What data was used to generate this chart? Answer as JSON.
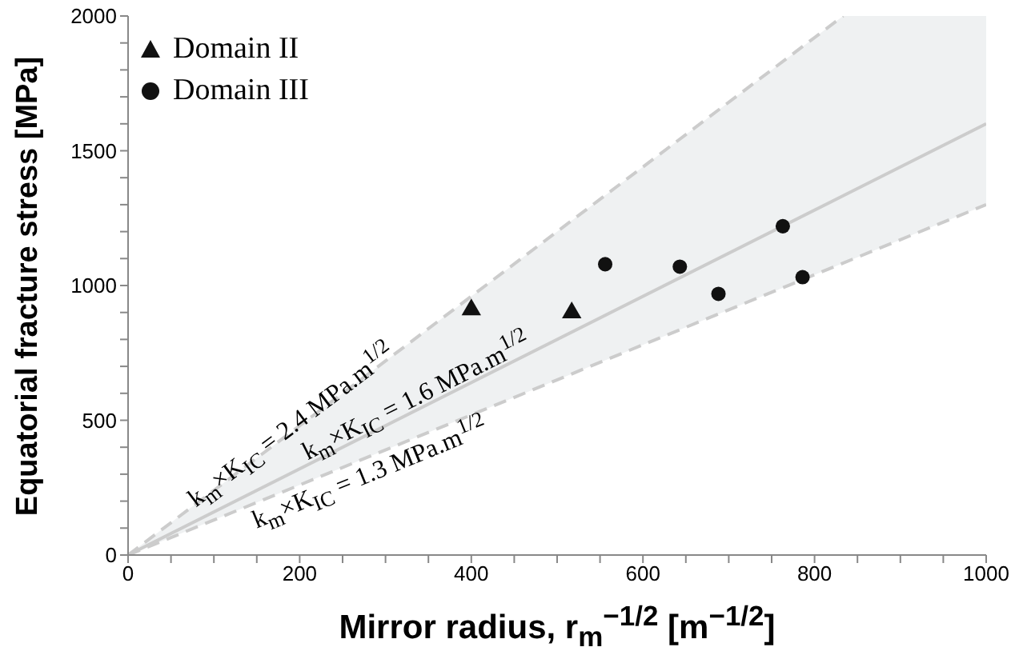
{
  "chart_data": {
    "type": "scatter",
    "xlabel": "Mirror radius, r$_{m}$$^{−1/2}$ [m$^{−1/2}$]",
    "ylabel": "Equatorial fracture stress [MPa]",
    "xlim": [
      0,
      1000
    ],
    "xticks": [
      0,
      {
        "value": 50,
        "label": null
      },
      {
        "value": 100,
        "label": null
      },
      {
        "value": 150,
        "label": null
      },
      200,
      {
        "value": 250,
        "label": null
      },
      {
        "value": 300,
        "label": null
      },
      {
        "value": 350,
        "label": null
      },
      400,
      {
        "value": 450,
        "label": null
      },
      {
        "value": 500,
        "label": null
      },
      {
        "value": 550,
        "label": null
      },
      600,
      {
        "value": 650,
        "label": null
      },
      {
        "value": 700,
        "label": null
      },
      {
        "value": 750,
        "label": null
      },
      800,
      {
        "value": 850,
        "label": null
      },
      {
        "value": 900,
        "label": null
      },
      {
        "value": 950,
        "label": null
      },
      1000
    ],
    "ylim": [
      0,
      2000
    ],
    "yticks": [
      0,
      {
        "value": 100,
        "label": null
      },
      {
        "value": 200,
        "label": null
      },
      {
        "value": 300,
        "label": null
      },
      {
        "value": 400,
        "label": null
      },
      500,
      {
        "value": 600,
        "label": null
      },
      {
        "value": 700,
        "label": null
      },
      {
        "value": 800,
        "label": null
      },
      {
        "value": 900,
        "label": null
      },
      1000,
      {
        "value": 1100,
        "label": null
      },
      {
        "value": 1200,
        "label": null
      },
      {
        "value": 1300,
        "label": null
      },
      {
        "value": 1400,
        "label": null
      },
      1500,
      {
        "value": 1600,
        "label": null
      },
      {
        "value": 1700,
        "label": null
      },
      {
        "value": 1800,
        "label": null
      },
      {
        "value": 1900,
        "label": null
      },
      2000
    ],
    "grid": false,
    "legend": "top left",
    "series": [
      {
        "name": "Domain II",
        "marker": "triangle",
        "color": "#111111",
        "x": [
          400,
          517
        ],
        "values": [
          910,
          899
        ]
      },
      {
        "name": "Domain III",
        "marker": "circle",
        "color": "#111111",
        "x": [
          556,
          643,
          688,
          763,
          786
        ],
        "values": [
          1079,
          1070,
          969,
          1220,
          1031
        ]
      },
      {
        "type": "line",
        "color": "#cccccc",
        "line_style": "dashed",
        "x": [
          0,
          833.3
        ],
        "values": [
          0,
          2000
        ]
      },
      {
        "type": "line",
        "color": "#cccccc",
        "line_style": "solid",
        "x": [
          0,
          833.3,
          1000
        ],
        "values": [
          0,
          1333,
          1600
        ],
        "lower": [
          0,
          1083,
          1300
        ],
        "upper": [
          0,
          2000,
          2000
        ]
      },
      {
        "type": "line",
        "color": "#cccccc",
        "line_style": "dashed",
        "x": [
          0,
          1000
        ],
        "values": [
          0,
          1300
        ]
      }
    ],
    "annotations": [
      "k$_{m}$×K$_{IC}$ = 2.4 MPa.m$^{1/2}$",
      "k$_{m}$×K$_{IC}$ = 1.6 MPa.m$^{1/2}$",
      "k$_{m}$×K$_{IC}$ = 1.3 MPa.m$^{1/2}$"
    ]
  }
}
